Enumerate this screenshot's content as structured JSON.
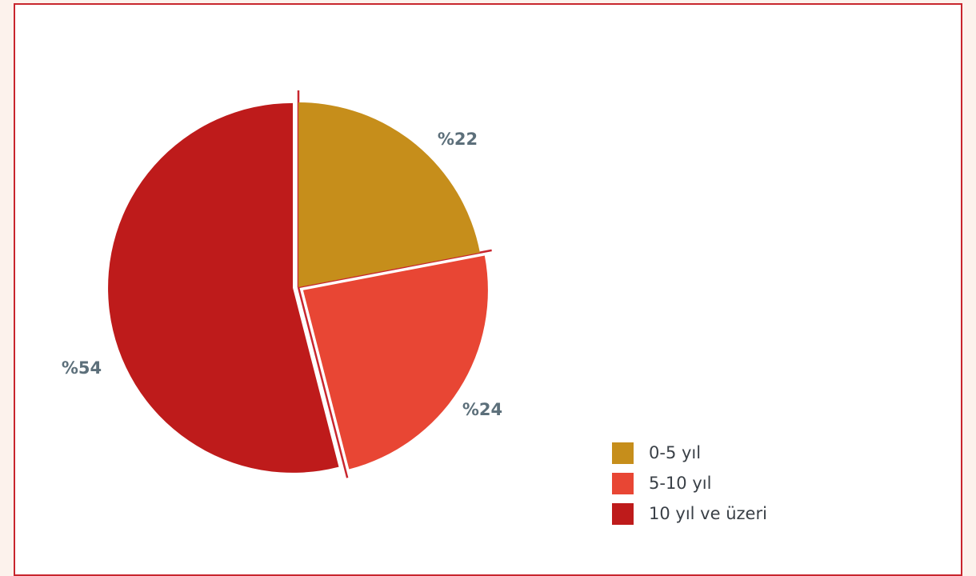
{
  "chart_data": {
    "type": "pie",
    "title": "",
    "legend_position": "bottom-right",
    "slices": [
      {
        "name": "0-5 yıl",
        "value": 22,
        "label": "%22",
        "color": "#c68e1b",
        "exploded": false
      },
      {
        "name": "5-10 yıl",
        "value": 24,
        "label": "%24",
        "color": "#e84634",
        "exploded": true
      },
      {
        "name": "10 yıl ve üzeri",
        "value": 54,
        "label": "%54",
        "color": "#be1b1b",
        "exploded": true
      }
    ],
    "separator_color": "#c8262e"
  }
}
